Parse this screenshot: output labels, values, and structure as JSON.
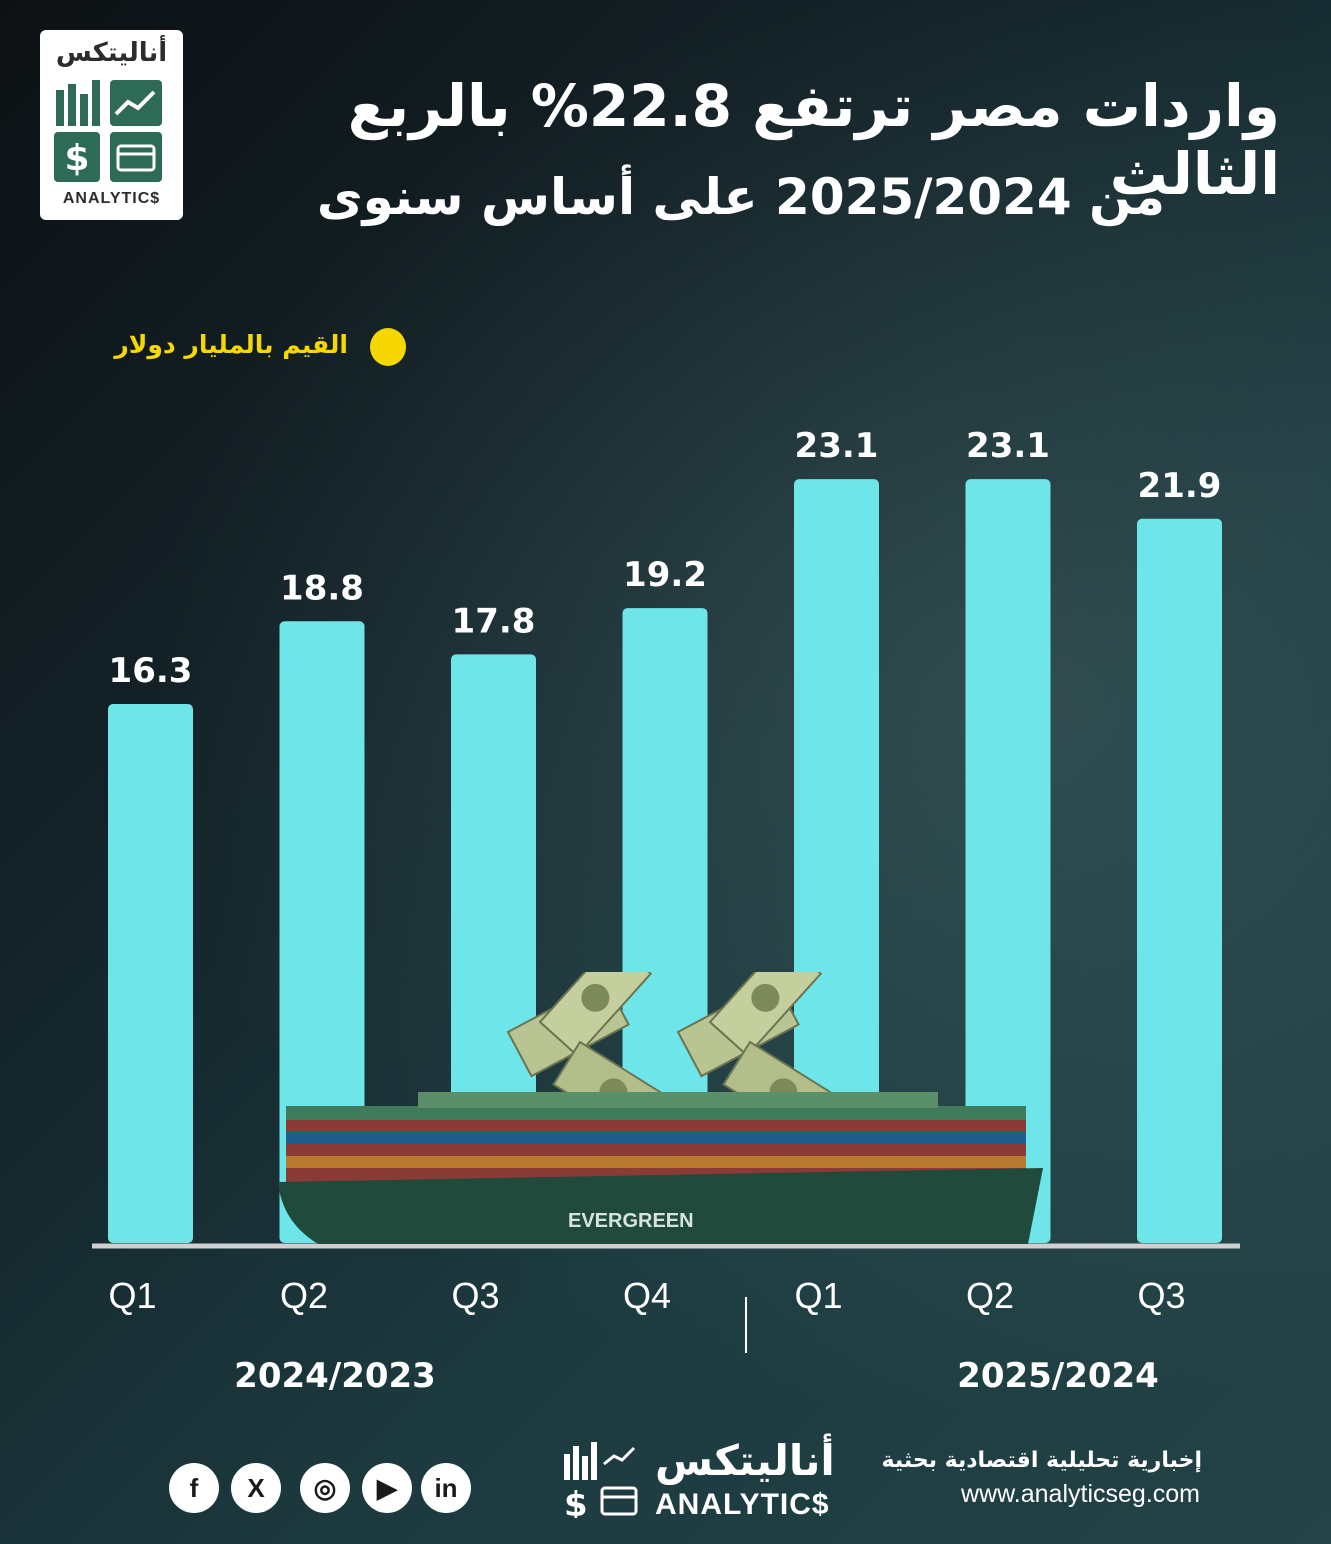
{
  "brand": {
    "name_ar": "أناليتكس",
    "name_en": "ANALYTIC$",
    "tagline": "إخبارية تحليلية اقتصادية بحثية",
    "website": "www.analyticseg.com"
  },
  "colors": {
    "bar": "#6ee5e8",
    "legend_dot": "#f7d700",
    "text": "#ffffff"
  },
  "chart_data": {
    "type": "bar",
    "title": "واردات مصر ترتفع 22.8% بالربع الثالث",
    "subtitle": "من 2025/2024 على أساس سنوى",
    "legend": "القيم بالمليار دولار",
    "categories": [
      "Q1",
      "Q2",
      "Q3",
      "Q4",
      "Q1",
      "Q2",
      "Q3"
    ],
    "groups": [
      {
        "label": "2024/2023",
        "categories": [
          "Q1",
          "Q2",
          "Q3",
          "Q4"
        ]
      },
      {
        "label": "2025/2024",
        "categories": [
          "Q1",
          "Q2",
          "Q3"
        ]
      }
    ],
    "values": [
      16.3,
      18.8,
      17.8,
      19.2,
      23.1,
      23.1,
      21.9
    ],
    "value_labels": [
      "16.3",
      "18.8",
      "17.8",
      "19.2",
      "23.1",
      "23.1",
      "21.9"
    ],
    "ylim": [
      0,
      27.7
    ],
    "grid": false
  },
  "social": [
    {
      "icon": "facebook-icon",
      "glyph": "f"
    },
    {
      "icon": "x-icon",
      "glyph": "X"
    },
    {
      "icon": "instagram-icon",
      "glyph": "◎"
    },
    {
      "icon": "youtube-icon",
      "glyph": "▶"
    },
    {
      "icon": "linkedin-icon",
      "glyph": "in"
    }
  ]
}
